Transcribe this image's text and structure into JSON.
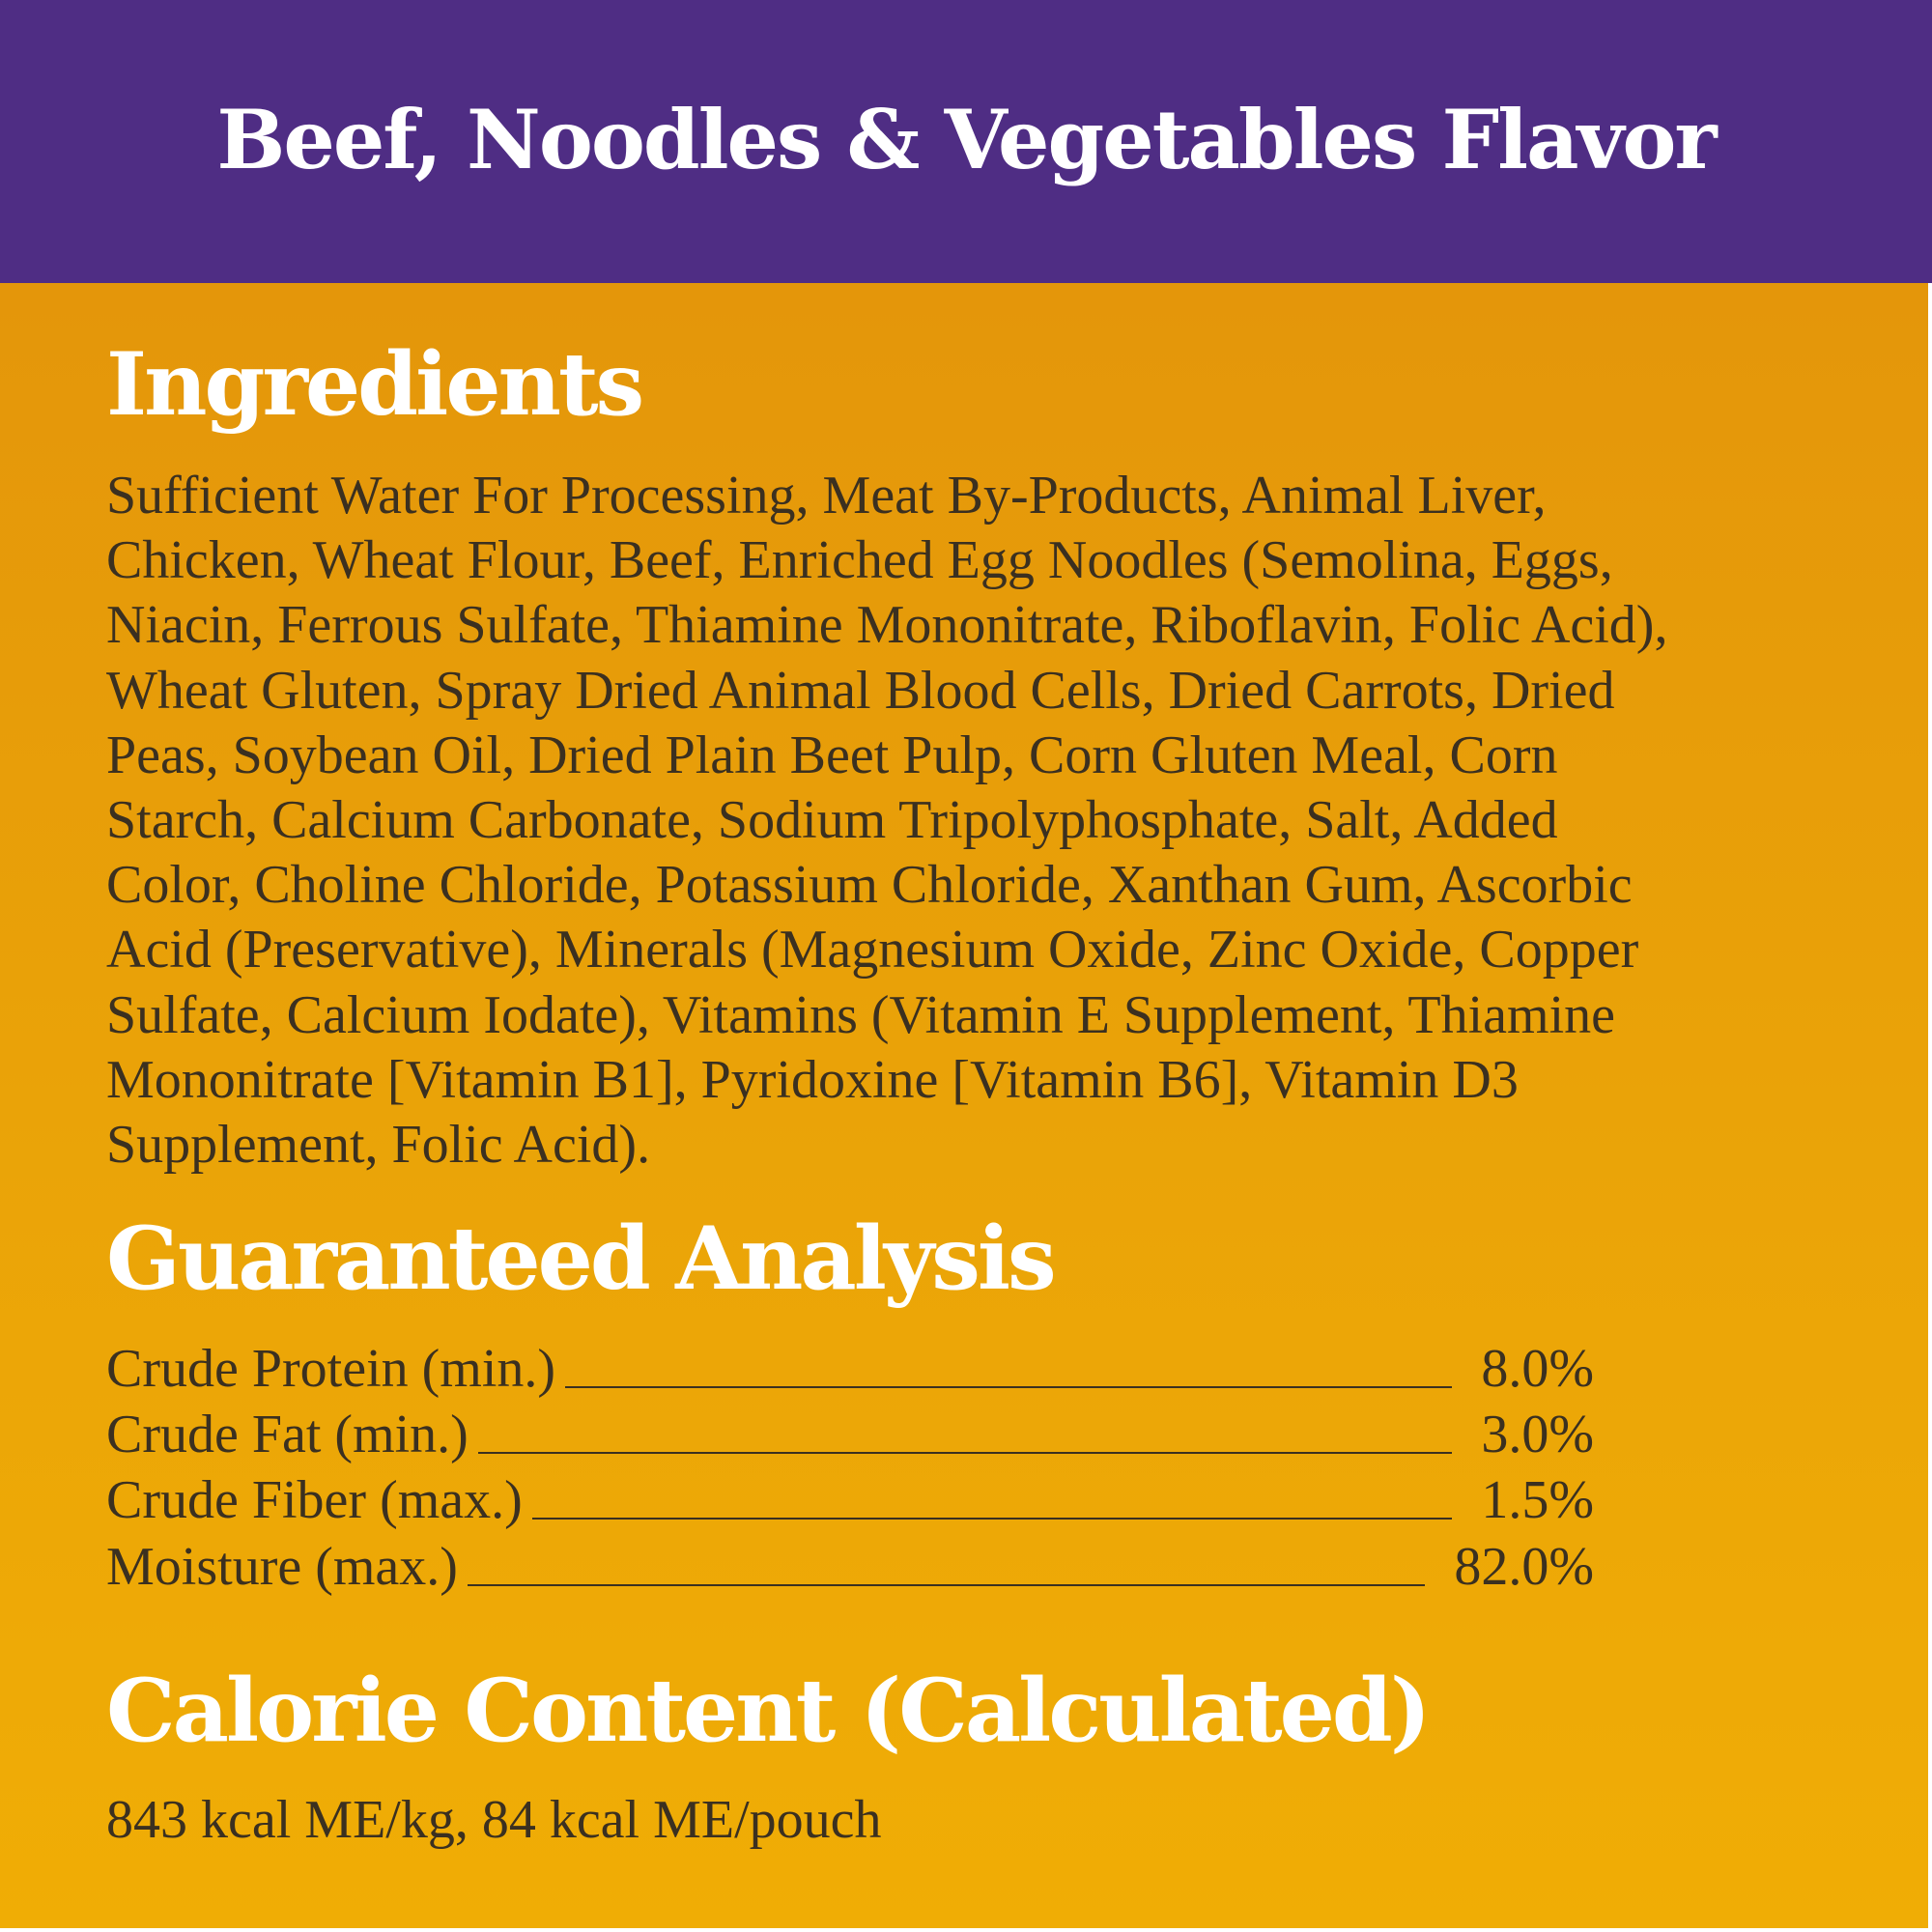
{
  "title": "Beef, Noodles & Vegetables Flavor",
  "colors": {
    "banner": "#4f2d84",
    "panel_top": "#e4960a",
    "panel_bottom": "#f0ad05",
    "text": "#3b3020",
    "heading": "#ffffff"
  },
  "ingredients": {
    "heading": "Ingredients",
    "lines": [
      "Sufficient Water For Processing, Meat By-Products, Animal Liver,",
      "Chicken, Wheat Flour, Beef,  Enriched Egg Noodles (Semolina, Eggs,",
      "Niacin, Ferrous Sulfate, Thiamine Mononitrate, Riboflavin, Folic Acid),",
      "Wheat Gluten, Spray Dried Animal Blood Cells, Dried Carrots, Dried",
      "Peas, Soybean Oil,  Dried Plain Beet Pulp, Corn Gluten Meal,  Corn",
      "Starch, Calcium Carbonate, Sodium Tripolyphosphate, Salt, Added",
      "Color, Choline Chloride, Potassium Chloride, Xanthan Gum, Ascorbic",
      "Acid (Preservative), Minerals (Magnesium Oxide, Zinc Oxide, Copper",
      "Sulfate, Calcium Iodate), Vitamins (Vitamin E Supplement, Thiamine",
      "Mononitrate [Vitamin B1], Pyridoxine [Vitamin B6], Vitamin D3",
      "Supplement, Folic Acid)."
    ]
  },
  "analysis": {
    "heading": "Guaranteed Analysis",
    "rows": [
      {
        "label": "Crude Protein (min.)",
        "value": "8.0%"
      },
      {
        "label": "Crude Fat (min.)",
        "value": "3.0%"
      },
      {
        "label": "Crude Fiber (max.)",
        "value": "1.5%"
      },
      {
        "label": "Moisture (max.)",
        "value": "82.0%"
      }
    ]
  },
  "calorie": {
    "heading": "Calorie Content (Calculated)",
    "text": "843 kcal ME/kg, 84 kcal ME/pouch"
  }
}
